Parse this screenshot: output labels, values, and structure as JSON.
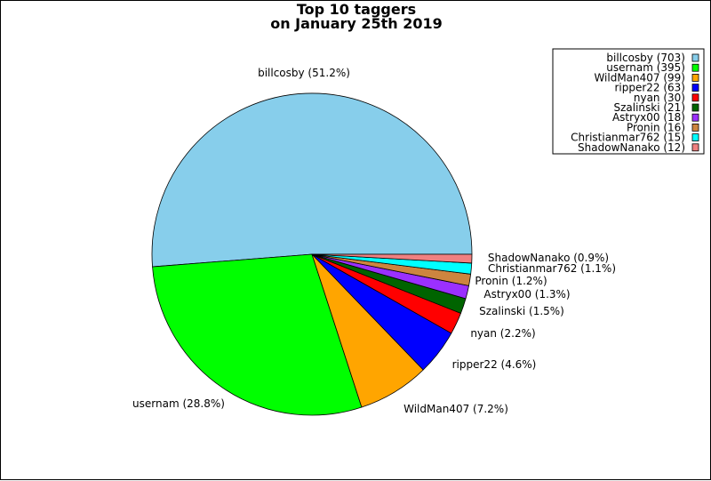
{
  "chart_data": {
    "type": "pie",
    "title_line1": "Top 10 taggers",
    "title_line2": "on January 25th 2019",
    "legend_placement": "top-right",
    "slices": [
      {
        "name": "billcosby",
        "value": 703,
        "percent_label": "billcosby (51.2%)",
        "legend_label": "billcosby (703)",
        "color": "#87ceeb"
      },
      {
        "name": "usernam",
        "value": 395,
        "percent_label": "usernam (28.8%)",
        "legend_label": "usernam (395)",
        "color": "#00ff00"
      },
      {
        "name": "WildMan407",
        "value": 99,
        "percent_label": "WildMan407 (7.2%)",
        "legend_label": "WildMan407 (99)",
        "color": "#ffa500"
      },
      {
        "name": "ripper22",
        "value": 63,
        "percent_label": "ripper22 (4.6%)",
        "legend_label": "ripper22 (63)",
        "color": "#0000ff"
      },
      {
        "name": "nyan",
        "value": 30,
        "percent_label": "nyan (2.2%)",
        "legend_label": "nyan (30)",
        "color": "#ff0000"
      },
      {
        "name": "Szalinski",
        "value": 21,
        "percent_label": "Szalinski (1.5%)",
        "legend_label": "Szalinski (21)",
        "color": "#006400"
      },
      {
        "name": "Astryx00",
        "value": 18,
        "percent_label": "Astryx00 (1.3%)",
        "legend_label": "Astryx00 (18)",
        "color": "#9b30ff"
      },
      {
        "name": "Pronin",
        "value": 16,
        "percent_label": "Pronin (1.2%)",
        "legend_label": "Pronin (16)",
        "color": "#cd853f"
      },
      {
        "name": "Christianmar762",
        "value": 15,
        "percent_label": "Christianmar762 (1.1%)",
        "legend_label": "Christianmar762 (15)",
        "color": "#00ffff"
      },
      {
        "name": "ShadowNanako",
        "value": 12,
        "percent_label": "ShadowNanako (0.9%)",
        "legend_label": "ShadowNanako (12)",
        "color": "#f08080"
      }
    ]
  }
}
